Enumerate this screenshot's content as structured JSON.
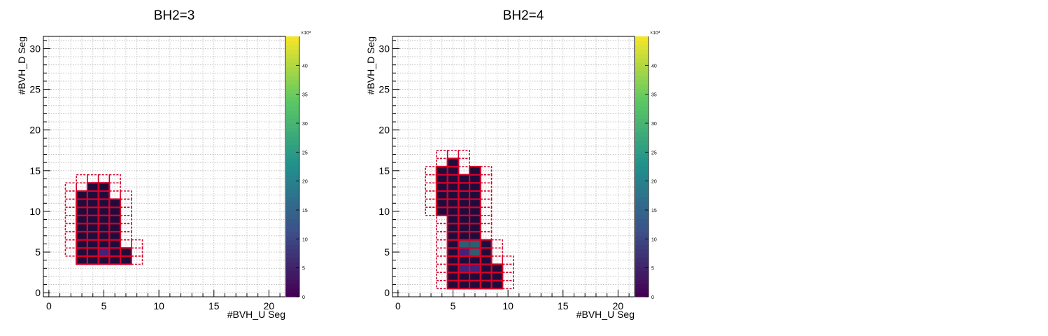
{
  "page": {
    "colors": {
      "background": "#ffffff",
      "cell_border": "#d6002a",
      "grid": "#b8b8b8",
      "axis": "#000000"
    },
    "colormap": "viridis"
  },
  "chart_data": [
    {
      "type": "heatmap",
      "title": "BH2=3",
      "xlabel": "#BVH_U Seg",
      "ylabel": "#BVH_D Seg",
      "xlim": [
        -0.5,
        21.5
      ],
      "ylim": [
        -0.5,
        31.5
      ],
      "xticks": [
        0,
        5,
        10,
        15,
        20
      ],
      "yticks": [
        0,
        5,
        10,
        15,
        20,
        25,
        30
      ],
      "grid": true,
      "colorbar": {
        "range": [
          0,
          45
        ],
        "ticks": [
          0,
          5,
          10,
          15,
          20,
          25,
          30,
          35,
          40
        ],
        "multiplier": "×10³"
      },
      "filled_cells": [
        [
          3,
          4,
          1
        ],
        [
          4,
          4,
          1
        ],
        [
          5,
          4,
          1
        ],
        [
          6,
          4,
          1
        ],
        [
          7,
          4,
          1
        ],
        [
          3,
          5,
          1
        ],
        [
          4,
          5,
          1
        ],
        [
          5,
          5,
          2
        ],
        [
          6,
          5,
          1
        ],
        [
          7,
          5,
          1
        ],
        [
          3,
          6,
          1
        ],
        [
          4,
          6,
          1
        ],
        [
          5,
          6,
          1
        ],
        [
          6,
          6,
          1
        ],
        [
          3,
          7,
          1
        ],
        [
          4,
          7,
          1
        ],
        [
          5,
          7,
          1
        ],
        [
          6,
          7,
          1
        ],
        [
          3,
          8,
          1
        ],
        [
          4,
          8,
          1
        ],
        [
          5,
          8,
          1
        ],
        [
          6,
          8,
          1
        ],
        [
          3,
          9,
          1
        ],
        [
          4,
          9,
          1
        ],
        [
          5,
          9,
          1
        ],
        [
          6,
          9,
          1
        ],
        [
          3,
          10,
          1
        ],
        [
          4,
          10,
          1
        ],
        [
          5,
          10,
          1
        ],
        [
          6,
          10,
          1
        ],
        [
          3,
          11,
          1
        ],
        [
          4,
          11,
          1
        ],
        [
          5,
          11,
          1
        ],
        [
          6,
          11,
          1
        ],
        [
          3,
          12,
          1
        ],
        [
          4,
          12,
          1
        ],
        [
          5,
          12,
          1
        ],
        [
          4,
          13,
          1
        ],
        [
          5,
          13,
          1
        ]
      ],
      "dashed_cells": [
        [
          2,
          5
        ],
        [
          2,
          6
        ],
        [
          2,
          7
        ],
        [
          2,
          8
        ],
        [
          2,
          9
        ],
        [
          2,
          10
        ],
        [
          2,
          11
        ],
        [
          2,
          12
        ],
        [
          2,
          13
        ],
        [
          3,
          13
        ],
        [
          3,
          14
        ],
        [
          4,
          14
        ],
        [
          5,
          14
        ],
        [
          6,
          14
        ],
        [
          6,
          13
        ],
        [
          6,
          12
        ],
        [
          7,
          12
        ],
        [
          7,
          11
        ],
        [
          7,
          10
        ],
        [
          7,
          9
        ],
        [
          7,
          8
        ],
        [
          7,
          7
        ],
        [
          7,
          6
        ],
        [
          8,
          6
        ],
        [
          8,
          5
        ],
        [
          8,
          4
        ],
        [
          6,
          4
        ],
        [
          7,
          4
        ]
      ]
    },
    {
      "type": "heatmap",
      "title": "BH2=4",
      "xlabel": "#BVH_U Seg",
      "ylabel": "#BVH_D Seg",
      "xlim": [
        -0.5,
        21.5
      ],
      "ylim": [
        -0.5,
        31.5
      ],
      "xticks": [
        0,
        5,
        10,
        15,
        20
      ],
      "yticks": [
        0,
        5,
        10,
        15,
        20,
        25,
        30
      ],
      "grid": true,
      "colorbar": {
        "range": [
          0,
          45
        ],
        "ticks": [
          0,
          5,
          10,
          15,
          20,
          25,
          30,
          35,
          40
        ],
        "multiplier": "×10³"
      },
      "filled_cells": [
        [
          4,
          10,
          1
        ],
        [
          4,
          11,
          1
        ],
        [
          4,
          12,
          1
        ],
        [
          4,
          13,
          1
        ],
        [
          4,
          14,
          1
        ],
        [
          4,
          15,
          1
        ],
        [
          5,
          1,
          1
        ],
        [
          5,
          2,
          1
        ],
        [
          5,
          3,
          1
        ],
        [
          5,
          4,
          1
        ],
        [
          5,
          5,
          1
        ],
        [
          5,
          6,
          1
        ],
        [
          5,
          7,
          1
        ],
        [
          5,
          8,
          1
        ],
        [
          5,
          9,
          1
        ],
        [
          5,
          10,
          1
        ],
        [
          5,
          11,
          1
        ],
        [
          5,
          12,
          1
        ],
        [
          5,
          13,
          1
        ],
        [
          5,
          14,
          1
        ],
        [
          5,
          15,
          1
        ],
        [
          5,
          16,
          1
        ],
        [
          6,
          1,
          1
        ],
        [
          6,
          2,
          1
        ],
        [
          6,
          3,
          2
        ],
        [
          6,
          4,
          1
        ],
        [
          6,
          5,
          2
        ],
        [
          6,
          6,
          3
        ],
        [
          6,
          7,
          1
        ],
        [
          6,
          8,
          1
        ],
        [
          6,
          9,
          1
        ],
        [
          6,
          10,
          1
        ],
        [
          6,
          11,
          1
        ],
        [
          6,
          12,
          1
        ],
        [
          6,
          13,
          1
        ],
        [
          6,
          14,
          1
        ],
        [
          7,
          1,
          1
        ],
        [
          7,
          2,
          1
        ],
        [
          7,
          3,
          2
        ],
        [
          7,
          4,
          1
        ],
        [
          7,
          5,
          3
        ],
        [
          7,
          6,
          3
        ],
        [
          7,
          7,
          1
        ],
        [
          7,
          8,
          1
        ],
        [
          7,
          9,
          1
        ],
        [
          7,
          10,
          1
        ],
        [
          7,
          11,
          1
        ],
        [
          7,
          12,
          1
        ],
        [
          7,
          13,
          1
        ],
        [
          7,
          14,
          1
        ],
        [
          7,
          15,
          1
        ],
        [
          8,
          1,
          1
        ],
        [
          8,
          2,
          1
        ],
        [
          8,
          3,
          1
        ],
        [
          8,
          4,
          1
        ],
        [
          8,
          5,
          1
        ],
        [
          8,
          6,
          1
        ],
        [
          9,
          1,
          1
        ],
        [
          9,
          2,
          1
        ],
        [
          9,
          3,
          1
        ],
        [
          4,
          15,
          1
        ],
        [
          4,
          14,
          1
        ]
      ],
      "dashed_cells": [
        [
          3,
          10
        ],
        [
          3,
          11
        ],
        [
          3,
          12
        ],
        [
          3,
          13
        ],
        [
          3,
          14
        ],
        [
          3,
          15
        ],
        [
          4,
          9
        ],
        [
          4,
          16
        ],
        [
          4,
          17
        ],
        [
          5,
          17
        ],
        [
          6,
          17
        ],
        [
          6,
          16
        ],
        [
          8,
          15
        ],
        [
          8,
          14
        ],
        [
          8,
          13
        ],
        [
          8,
          12
        ],
        [
          8,
          11
        ],
        [
          8,
          10
        ],
        [
          8,
          9
        ],
        [
          8,
          8
        ],
        [
          8,
          7
        ],
        [
          9,
          6
        ],
        [
          9,
          5
        ],
        [
          9,
          4
        ],
        [
          10,
          4
        ],
        [
          10,
          3
        ],
        [
          10,
          2
        ],
        [
          10,
          1
        ],
        [
          4,
          1
        ],
        [
          4,
          2
        ],
        [
          4,
          3
        ],
        [
          4,
          4
        ],
        [
          4,
          5
        ],
        [
          4,
          6
        ],
        [
          4,
          7
        ],
        [
          4,
          8
        ]
      ]
    }
  ]
}
